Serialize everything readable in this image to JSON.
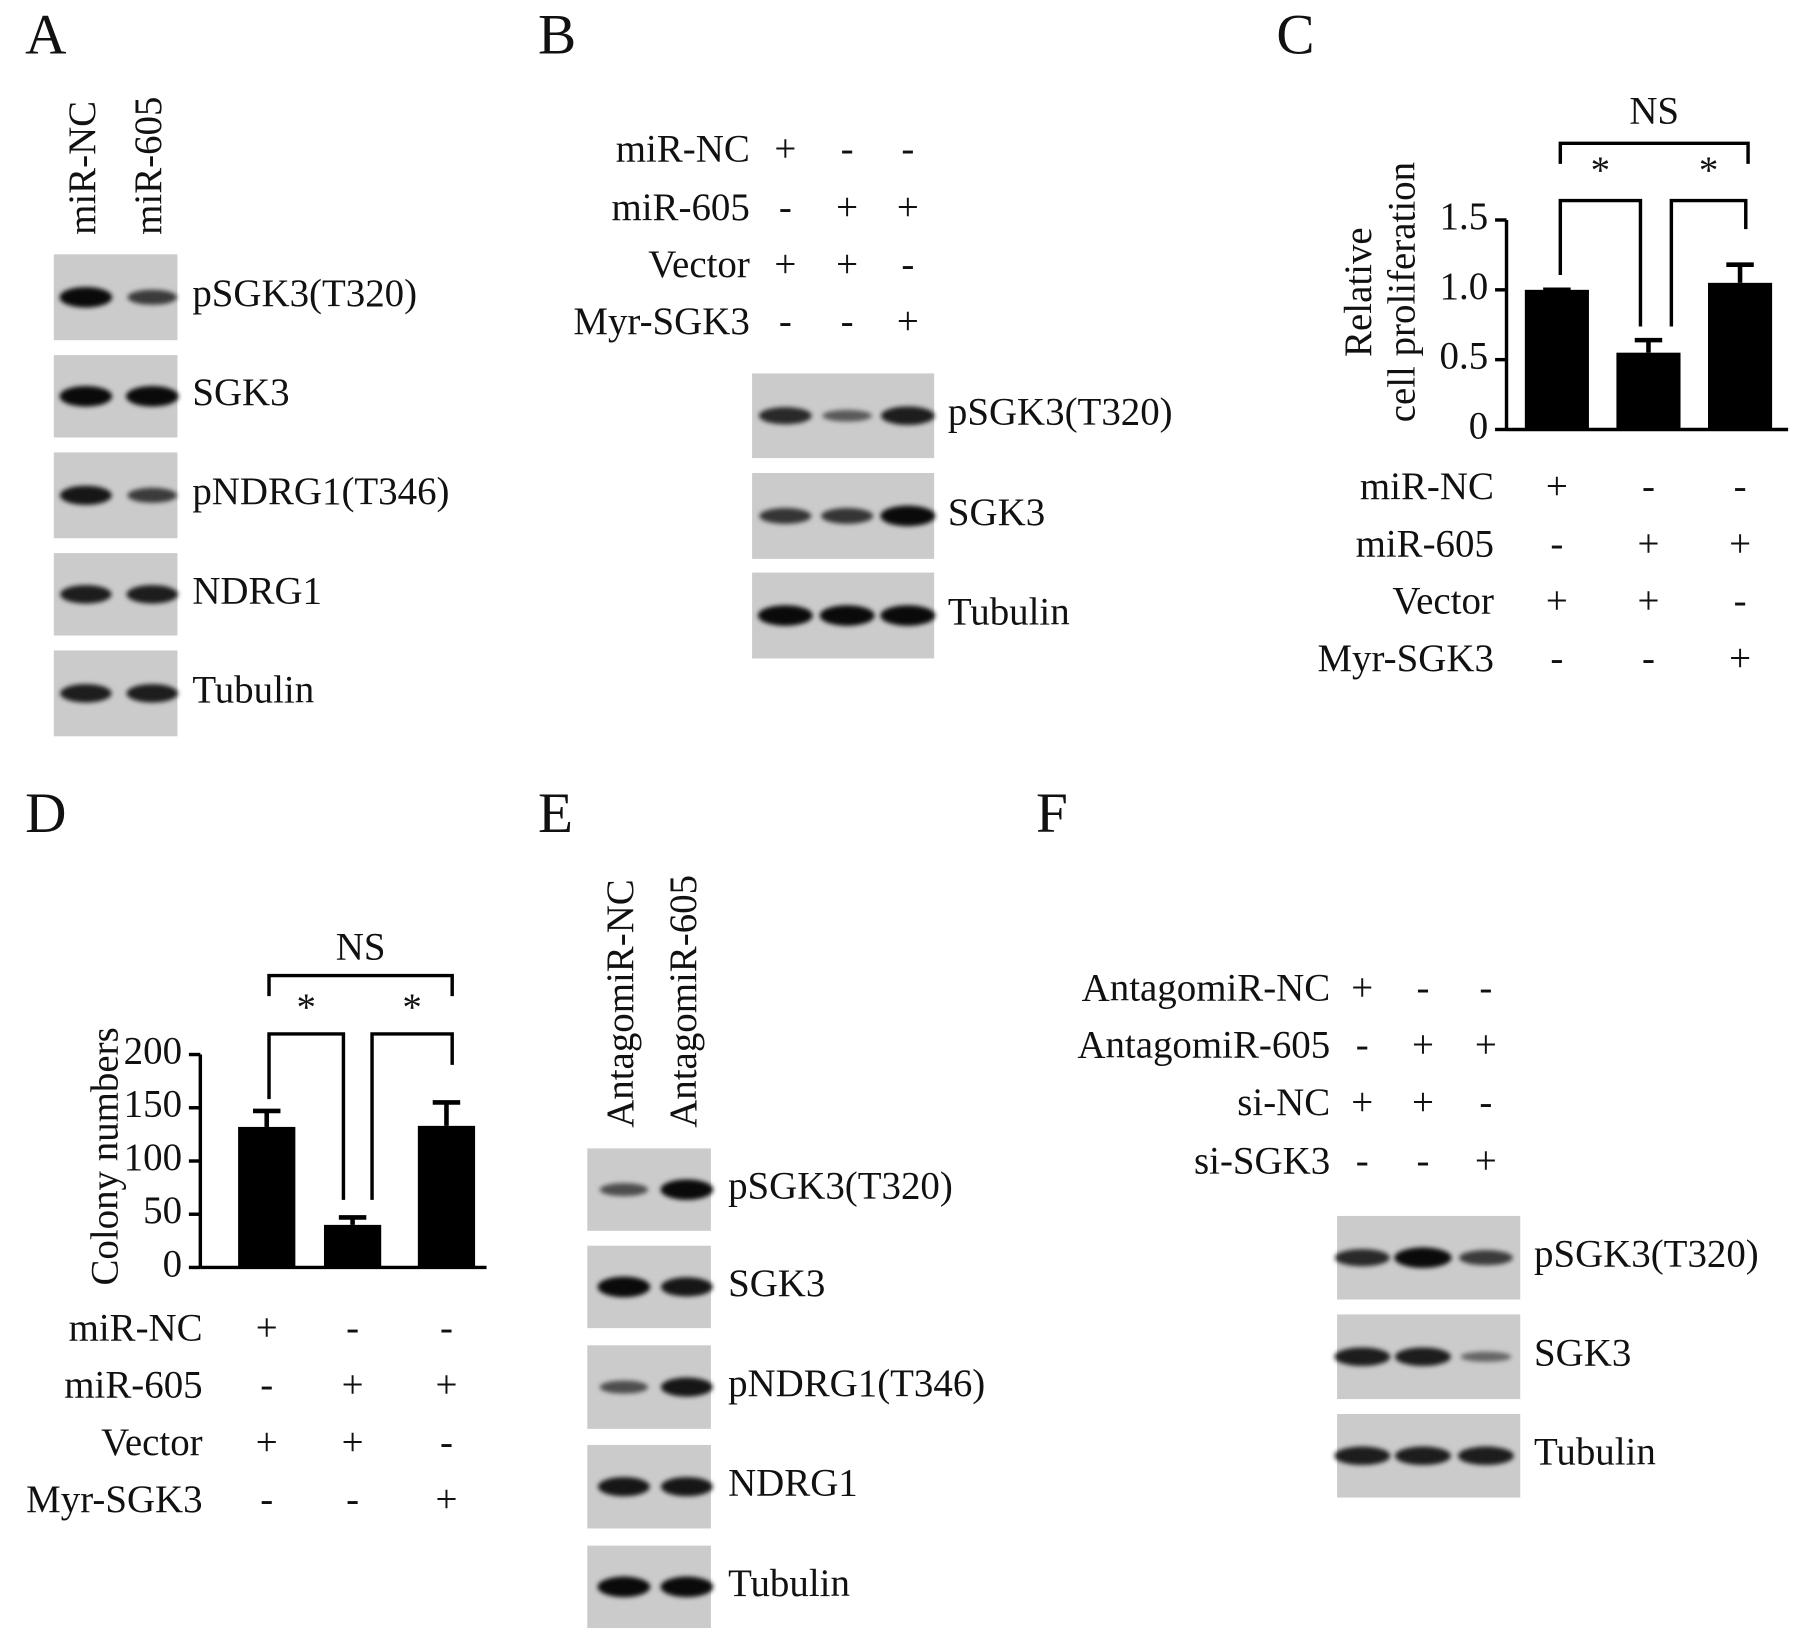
{
  "panel_letters": [
    "A",
    "B",
    "C",
    "D",
    "E",
    "F"
  ],
  "blots": [
    {
      "lanes": [
        "miR-NC",
        "miR-605"
      ],
      "bands": [
        "pSGK3(T320)",
        "SGK3",
        "pNDRG1(T346)",
        "NDRG1",
        "Tubulin"
      ]
    },
    {
      "conditions": [
        {
          "label": "miR-NC",
          "signs": [
            "+",
            "-",
            "-"
          ]
        },
        {
          "label": "miR-605",
          "signs": [
            "-",
            "+",
            "+"
          ]
        },
        {
          "label": "Vector",
          "signs": [
            "+",
            "+",
            "-"
          ]
        },
        {
          "label": "Myr-SGK3",
          "signs": [
            "-",
            "-",
            "+"
          ]
        }
      ],
      "bands": [
        "pSGK3(T320)",
        "SGK3",
        "Tubulin"
      ]
    },
    {
      "lanes": [
        "AntagomiR-NC",
        "AntagomiR-605"
      ],
      "bands": [
        "pSGK3(T320)",
        "SGK3",
        "pNDRG1(T346)",
        "NDRG1",
        "Tubulin"
      ]
    },
    {
      "conditions": [
        {
          "label": "AntagomiR-NC",
          "signs": [
            "+",
            "-",
            "-"
          ]
        },
        {
          "label": "AntagomiR-605",
          "signs": [
            "-",
            "+",
            "+"
          ]
        },
        {
          "label": "si-NC",
          "signs": [
            "+",
            "+",
            "-"
          ]
        },
        {
          "label": "si-SGK3",
          "signs": [
            "-",
            "-",
            "+"
          ]
        }
      ],
      "bands": [
        "pSGK3(T320)",
        "SGK3",
        "Tubulin"
      ]
    }
  ],
  "chart_data": [
    {
      "type": "bar",
      "ylabel": [
        "Relative",
        "cell proliferation"
      ],
      "categories": [
        null,
        null,
        null
      ],
      "values": [
        1.0,
        0.55,
        1.05
      ],
      "errors": [
        0,
        0.09,
        0.13
      ],
      "color": "#000000",
      "ylim": [
        0,
        1.5
      ],
      "yticks": [
        0,
        {
          "value": 0.5,
          "label": "0.5"
        },
        {
          "value": 1,
          "label": "1.0"
        },
        {
          "value": 1.5,
          "label": "1.5"
        }
      ],
      "annotations": [
        "NS",
        "*",
        "*"
      ],
      "conditions": [
        {
          "label": "miR-NC",
          "signs": [
            "+",
            "-",
            "-"
          ]
        },
        {
          "label": "miR-605",
          "signs": [
            "-",
            "+",
            "+"
          ]
        },
        {
          "label": "Vector",
          "signs": [
            "+",
            "+",
            "-"
          ]
        },
        {
          "label": "Myr-SGK3",
          "signs": [
            "-",
            "-",
            "+"
          ]
        }
      ]
    },
    {
      "type": "bar",
      "ylabel": [
        "Colony numbers"
      ],
      "categories": [
        null,
        null,
        null
      ],
      "values": [
        132,
        40,
        133
      ],
      "errors": [
        15,
        7,
        22
      ],
      "color": "#000000",
      "ylim": [
        0,
        200
      ],
      "yticks": [
        0,
        50,
        100,
        150,
        200
      ],
      "annotations": [
        "NS",
        "*",
        "*"
      ],
      "conditions": [
        {
          "label": "miR-NC",
          "signs": [
            "+",
            "-",
            "-"
          ]
        },
        {
          "label": "miR-605",
          "signs": [
            "-",
            "+",
            "+"
          ]
        },
        {
          "label": "Vector",
          "signs": [
            "+",
            "+",
            "-"
          ]
        },
        {
          "label": "Myr-SGK3",
          "signs": [
            "-",
            "-",
            "+"
          ]
        }
      ]
    }
  ]
}
